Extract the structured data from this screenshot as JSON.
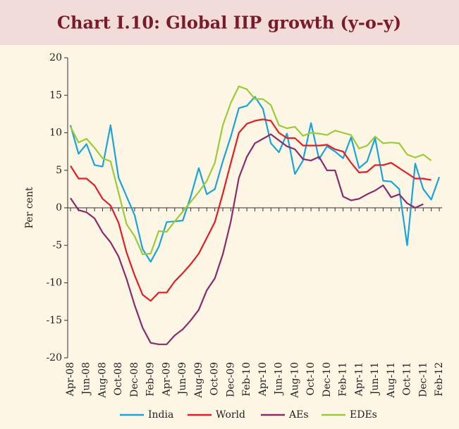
{
  "chart_data": {
    "type": "line",
    "title": "Chart I.10: Global IIP growth (y-o-y)",
    "y_label": "Per cent",
    "categories": [
      "Apr-08",
      null,
      "Jun-08",
      null,
      "Aug-08",
      null,
      "Oct-08",
      null,
      "Dec-08",
      null,
      "Feb-09",
      null,
      "Apr-09",
      null,
      "Jun-09",
      null,
      "Aug-09",
      null,
      "Oct-09",
      null,
      "Dec-09",
      null,
      "Feb-10",
      null,
      "Apr-10",
      null,
      "Jun-10",
      null,
      "Aug-10",
      null,
      "Oct-10",
      null,
      "Dec-10",
      null,
      "Feb-11",
      null,
      "Apr-11",
      null,
      "Jun-11",
      null,
      "Aug-11",
      null,
      "Oct-11",
      null,
      "Dec-11",
      null,
      "Feb-12"
    ],
    "series": [
      {
        "name": "India",
        "color": "#1ba3de",
        "values": [
          11,
          7.2,
          8.5,
          5.7,
          5.5,
          11,
          4,
          1.5,
          -1,
          -5.5,
          -7.2,
          -5.2,
          -1.9,
          -1.8,
          -1.7,
          1.5,
          5.3,
          1.8,
          2.5,
          6.2,
          9.5,
          13.3,
          13.6,
          14.8,
          13.2,
          8.6,
          7.4,
          9.9,
          4.5,
          6.3,
          11.3,
          6.5,
          8.2,
          7.5,
          6.6,
          9.4,
          5.3,
          6.2,
          9.3,
          3.6,
          3.5,
          2.5,
          -5,
          5.9,
          2.5,
          1.1,
          4.1
        ]
      },
      {
        "name": "World",
        "color": "#e31e24",
        "values": [
          5.6,
          3.9,
          3.9,
          3.0,
          1.2,
          0.3,
          -2.0,
          -6,
          -9,
          -11.6,
          -12.4,
          -11.3,
          -11.3,
          -9.8,
          -8.7,
          -7.5,
          -6.1,
          -4,
          -1.9,
          1.9,
          6.0,
          10.0,
          11.2,
          11.6,
          11.8,
          11.6,
          10,
          9.3,
          9.3,
          8.3,
          8.3,
          8.3,
          8.4,
          7.8,
          7.5,
          6.0,
          4.7,
          4.8,
          5.7,
          5.7,
          6.0,
          5.3,
          4.6,
          3.9,
          3.9,
          3.7,
          null
        ]
      },
      {
        "name": "AEs",
        "color": "#8a2b6c",
        "values": [
          1.3,
          -0.3,
          -0.6,
          -1.4,
          -3.3,
          -4.6,
          -6.5,
          -9.5,
          -13,
          -16,
          -18,
          -18.2,
          -18.2,
          -17,
          -16.2,
          -15,
          -13.6,
          -11,
          -9.4,
          -6.2,
          -1.8,
          4,
          6.8,
          8.6,
          9.2,
          9.8,
          9.0,
          8.2,
          7.8,
          6.5,
          6.3,
          6.8,
          5.0,
          5.0,
          1.5,
          1.0,
          1.2,
          1.8,
          2.3,
          3.0,
          1.4,
          1.8,
          0.6,
          0,
          0.5,
          null,
          null
        ]
      },
      {
        "name": "EDEs",
        "color": "#9bcb3b",
        "values": [
          10.8,
          8.7,
          9.2,
          8.0,
          6.6,
          6.2,
          2.0,
          -2.2,
          -3.8,
          -6.2,
          -6.1,
          -3.1,
          -3.2,
          -1.8,
          -0.5,
          0.8,
          2.1,
          3.6,
          6.0,
          11.0,
          14.0,
          16.2,
          15.8,
          14.5,
          14.5,
          13.7,
          11.0,
          10.6,
          10.8,
          9.6,
          10.0,
          9.9,
          9.7,
          10.3,
          10.0,
          9.7,
          7.9,
          8.3,
          9.5,
          8.6,
          8.7,
          8.6,
          7.1,
          6.7,
          7.1,
          6.3,
          null
        ]
      }
    ],
    "ylim": [
      -20,
      20
    ],
    "yticks": [
      -20,
      -15,
      -10,
      -5,
      0,
      5,
      10,
      15,
      20
    ],
    "grid": false,
    "legend": "bottom"
  }
}
